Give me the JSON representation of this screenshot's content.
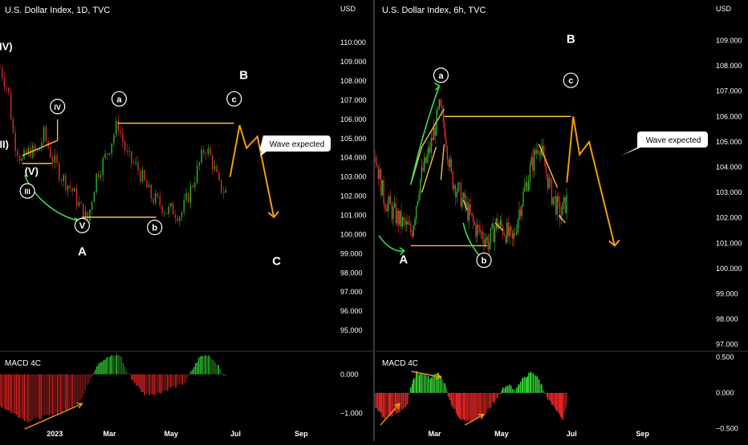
{
  "colors": {
    "background": "#000000",
    "divider": "#3a3a3a",
    "text": "#ffffff",
    "bullish": "#2eb82e",
    "bearish": "#e03030",
    "fib_lines": "#f5c242",
    "projection": "#f39c12",
    "arrow_green": "#3ddc5c",
    "macd_up_strong": "#33cc33",
    "macd_up_weak": "#1f6f1f",
    "macd_down_strong": "#e32222",
    "macd_down_weak": "#7a1a1a"
  },
  "panels": [
    {
      "title": "U.S. Dollar Index, 1D, TVC",
      "price_unit": "USD",
      "indicator_label": "MACD 4C",
      "note_text": "Wave expected"
    },
    {
      "title": "U.S. Dollar Index, 6h, TVC",
      "price_unit": "USD",
      "indicator_label": "MACD 4C",
      "note_text": "Wave expected"
    }
  ],
  "chart_data": [
    {
      "type": "candlestick",
      "title": "U.S. Dollar Index, 1D, TVC",
      "ylabel": "USD",
      "ylim": [
        94,
        111.3
      ],
      "y_ticks": [
        "110.000",
        "109.000",
        "108.000",
        "107.000",
        "106.000",
        "105.000",
        "104.000",
        "103.000",
        "102.000",
        "101.000",
        "100.000",
        "99.000",
        "98.000",
        "97.000",
        "96.000",
        "95.000"
      ],
      "x_ticks": [
        "2023",
        "Mar",
        "May",
        "Jul",
        "Sep"
      ],
      "x_index_range": [
        0,
        245
      ],
      "x_tick_index": [
        40,
        80,
        125,
        172,
        220
      ],
      "data_end_index": 165,
      "path": [
        [
          0,
          108.7
        ],
        [
          6,
          107.5
        ],
        [
          10,
          105
        ],
        [
          16,
          103.8
        ],
        [
          22,
          104.4
        ],
        [
          27,
          104.2
        ],
        [
          32,
          105.2
        ],
        [
          38,
          104
        ],
        [
          45,
          103
        ],
        [
          52,
          102.4
        ],
        [
          60,
          101.2
        ],
        [
          64,
          100.7
        ],
        [
          70,
          103
        ],
        [
          78,
          104.2
        ],
        [
          86,
          105.8
        ],
        [
          93,
          104
        ],
        [
          100,
          103.5
        ],
        [
          110,
          102
        ],
        [
          118,
          101.5
        ],
        [
          122,
          101.2
        ],
        [
          126,
          101.3
        ],
        [
          132,
          101
        ],
        [
          140,
          102.5
        ],
        [
          150,
          104.6
        ],
        [
          155,
          103.8
        ],
        [
          160,
          102.5
        ],
        [
          165,
          102.2
        ]
      ],
      "wave_labels": [
        {
          "text": "(IV)",
          "x": 3,
          "y": 109.6
        },
        {
          "text": "IV",
          "x": 42,
          "y": 106.5,
          "circled": true
        },
        {
          "text": "III)",
          "x": 2,
          "y": 104.5
        },
        {
          "text": "(V)",
          "x": 23,
          "y": 103.1
        },
        {
          "text": "III",
          "x": 20,
          "y": 102.1,
          "circled": true
        },
        {
          "text": "V",
          "x": 60,
          "y": 100.3,
          "circled": true
        },
        {
          "text": "A",
          "x": 60,
          "y": 98.9,
          "bold": true
        },
        {
          "text": "a",
          "x": 87,
          "y": 106.9,
          "circled": true
        },
        {
          "text": "b",
          "x": 113,
          "y": 100.2,
          "circled": true
        },
        {
          "text": "c",
          "x": 171,
          "y": 106.9,
          "circled": true
        },
        {
          "text": "B",
          "x": 178,
          "y": 108.1,
          "bold": true
        },
        {
          "text": "C",
          "x": 202,
          "y": 98.4,
          "bold": true
        }
      ],
      "hlines": [
        [
          86,
          105.8,
          171,
          105.8
        ],
        [
          60,
          100.9,
          114,
          100.9
        ]
      ],
      "yellow_segments": [
        [
          16,
          104.1,
          42,
          104.9
        ],
        [
          16,
          103.7,
          38,
          103.7
        ],
        [
          42,
          104.9,
          42,
          106.0
        ]
      ],
      "projection_path": [
        [
          168,
          103
        ],
        [
          175,
          105.7
        ],
        [
          180,
          104.5
        ],
        [
          188,
          105.1
        ],
        [
          200,
          100.9
        ]
      ],
      "green_arc": [
        [
          18,
          103.1
        ],
        [
          24,
          102
        ],
        [
          40,
          101
        ],
        [
          58,
          100.7
        ]
      ],
      "macd": {
        "ylim": [
          -1.5,
          0.55
        ],
        "y_ticks": [
          0.0,
          -1.0
        ],
        "y_tick_labels": [
          "0.000",
          "−1.000"
        ],
        "path": [
          [
            0,
            -0.8
          ],
          [
            10,
            -1.0
          ],
          [
            20,
            -1.2
          ],
          [
            30,
            -1.1
          ],
          [
            40,
            -1.0
          ],
          [
            50,
            -0.9
          ],
          [
            60,
            -0.6
          ],
          [
            66,
            -0.1
          ],
          [
            72,
            0.3
          ],
          [
            80,
            0.45
          ],
          [
            88,
            0.5
          ],
          [
            92,
            0.1
          ],
          [
            98,
            -0.2
          ],
          [
            105,
            -0.5
          ],
          [
            112,
            -0.5
          ],
          [
            118,
            -0.45
          ],
          [
            124,
            -0.35
          ],
          [
            130,
            -0.3
          ],
          [
            136,
            -0.2
          ],
          [
            140,
            0.1
          ],
          [
            146,
            0.45
          ],
          [
            152,
            0.5
          ],
          [
            158,
            0.3
          ],
          [
            162,
            0.05
          ],
          [
            165,
            -0.1
          ]
        ],
        "arrow": [
          [
            18,
            -1.4
          ],
          [
            60,
            -0.75
          ]
        ]
      },
      "box_note_xy": [
        200,
        103.5
      ]
    },
    {
      "type": "candlestick",
      "title": "U.S. Dollar Index, 6h, TVC",
      "ylabel": "USD",
      "ylim": [
        96.8,
        109.9
      ],
      "y_ticks": [
        "109.000",
        "108.000",
        "107.000",
        "106.000",
        "105.000",
        "104.000",
        "103.000",
        "102.000",
        "101.000",
        "100.000",
        "99.000",
        "98.000",
        "97.000"
      ],
      "x_ticks": [
        "Mar",
        "May",
        "Jul",
        "Sep"
      ],
      "x_index_range": [
        0,
        420
      ],
      "x_tick_index": [
        74,
        158,
        246,
        335
      ],
      "data_end_index": 240,
      "path": [
        [
          0,
          104.4
        ],
        [
          10,
          102.8
        ],
        [
          20,
          102.3
        ],
        [
          30,
          101.9
        ],
        [
          40,
          101.6
        ],
        [
          45,
          101.4
        ],
        [
          55,
          103.4
        ],
        [
          68,
          104.7
        ],
        [
          80,
          106.3
        ],
        [
          86,
          105.7
        ],
        [
          95,
          103.6
        ],
        [
          106,
          102.9
        ],
        [
          115,
          102.3
        ],
        [
          125,
          101.6
        ],
        [
          136,
          101.3
        ],
        [
          142,
          101
        ],
        [
          152,
          101.8
        ],
        [
          165,
          101.4
        ],
        [
          172,
          101
        ],
        [
          180,
          102.3
        ],
        [
          195,
          104
        ],
        [
          205,
          105
        ],
        [
          220,
          103
        ],
        [
          232,
          102.1
        ],
        [
          240,
          102.7
        ]
      ],
      "wave_labels": [
        {
          "text": "a",
          "x": 82,
          "y": 107.5,
          "circled": true
        },
        {
          "text": "b",
          "x": 136,
          "y": 100.2,
          "circled": true
        },
        {
          "text": "c",
          "x": 245,
          "y": 107.3,
          "circled": true
        },
        {
          "text": "B",
          "x": 245,
          "y": 108.9,
          "bold": true
        },
        {
          "text": "A",
          "x": 35,
          "y": 100.2,
          "bold": true
        }
      ],
      "hlines": [
        [
          86,
          106.0,
          245,
          106.0
        ],
        [
          44,
          100.9,
          140,
          100.9
        ]
      ],
      "yellow_segments": [
        [
          45,
          103.4,
          58,
          104.8
        ],
        [
          58,
          104.8,
          86,
          106.3
        ],
        [
          58,
          103.0,
          76,
          104.8
        ],
        [
          82,
          103.5,
          86,
          104.9
        ],
        [
          110,
          102.7,
          115,
          102.3
        ],
        [
          150,
          101.8,
          160,
          101.5
        ],
        [
          205,
          104.9,
          228,
          103.2
        ],
        [
          230,
          102.1,
          238,
          101.8
        ]
      ],
      "projection_path": [
        [
          240,
          103.4
        ],
        [
          248,
          106
        ],
        [
          256,
          104.5
        ],
        [
          268,
          105
        ],
        [
          300,
          100.9
        ]
      ],
      "green_arc": [
        [
          44,
          103.3
        ],
        [
          60,
          105.5
        ],
        [
          80,
          107.2
        ]
      ],
      "green_arc2": [
        [
          110,
          101.8
        ],
        [
          115,
          101
        ],
        [
          136,
          100.3
        ]
      ],
      "green_arc3": [
        [
          4,
          101.3
        ],
        [
          20,
          100.6
        ],
        [
          36,
          100.7
        ]
      ],
      "macd": {
        "ylim": [
          -0.56,
          0.56
        ],
        "y_ticks": [
          0.5,
          0.0,
          -0.5
        ],
        "y_tick_labels": [
          "0.500",
          "0.000",
          "−0.500"
        ],
        "path": [
          [
            0,
            -0.2
          ],
          [
            10,
            -0.35
          ],
          [
            20,
            -0.3
          ],
          [
            30,
            -0.25
          ],
          [
            40,
            -0.15
          ],
          [
            45,
            0.1
          ],
          [
            52,
            0.28
          ],
          [
            60,
            0.25
          ],
          [
            70,
            0.2
          ],
          [
            78,
            0.28
          ],
          [
            86,
            0.15
          ],
          [
            95,
            -0.15
          ],
          [
            106,
            -0.35
          ],
          [
            116,
            -0.4
          ],
          [
            128,
            -0.35
          ],
          [
            140,
            -0.25
          ],
          [
            150,
            -0.1
          ],
          [
            160,
            0.05
          ],
          [
            168,
            0.1
          ],
          [
            175,
            0.02
          ],
          [
            185,
            0.2
          ],
          [
            195,
            0.28
          ],
          [
            205,
            0.18
          ],
          [
            215,
            -0.05
          ],
          [
            225,
            -0.2
          ],
          [
            235,
            -0.35
          ],
          [
            240,
            -0.15
          ]
        ],
        "arrows": [
          [
            [
              6,
              -0.45
            ],
            [
              30,
              -0.15
            ]
          ],
          [
            [
              45,
              0.3
            ],
            [
              82,
              0.22
            ]
          ],
          [
            [
              112,
              -0.45
            ],
            [
              136,
              -0.3
            ]
          ]
        ]
      },
      "box_note_xy": [
        300,
        104.4
      ]
    }
  ]
}
